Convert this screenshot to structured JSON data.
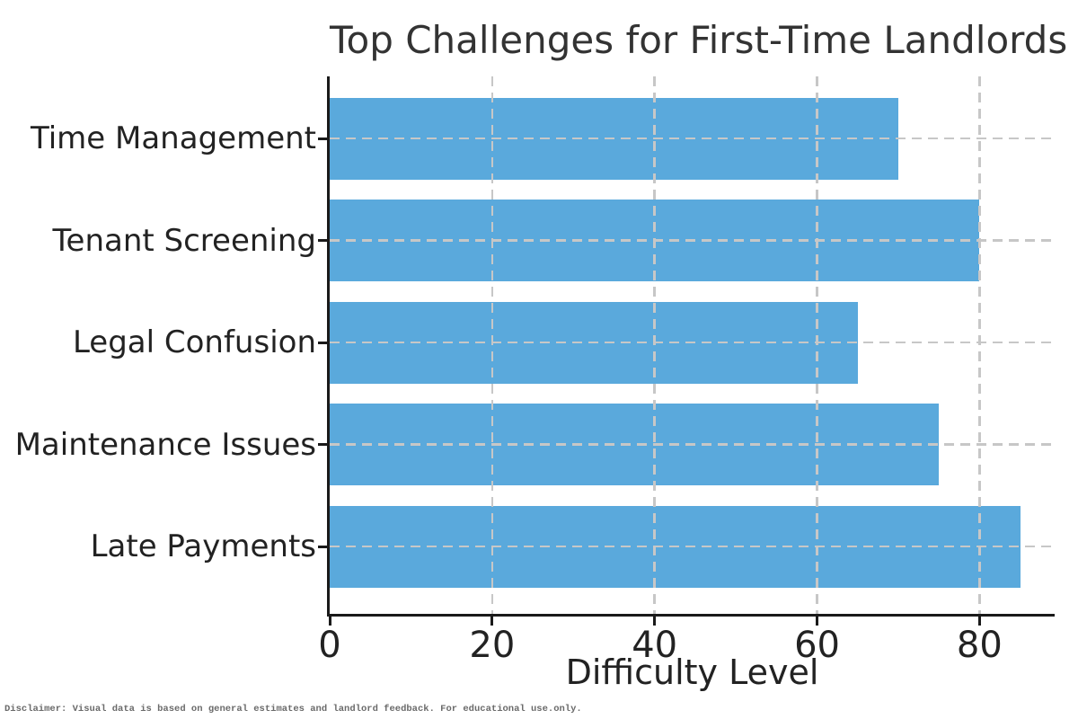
{
  "figure": {
    "disclaimer": "Disclaimer: Visual data is based on general estimates and landlord feedback. For educational use.only."
  },
  "chart_data": {
    "type": "bar",
    "orientation": "horizontal",
    "title": "Top Challenges for First-Time Landlords",
    "categories": [
      "Time Management",
      "Tenant Screening",
      "Legal Confusion",
      "Maintenance Issues",
      "Late Payments"
    ],
    "values": [
      70,
      80,
      65,
      75,
      85
    ],
    "xlabel": "Difficulty Level",
    "ylabel": "",
    "xticks": [
      0,
      20,
      40,
      60,
      80
    ],
    "xlim": [
      0,
      89.25
    ],
    "grid": "dashed gridlines on both axes, drawn above bars",
    "legend": "none",
    "bar_color": "#5AA9DC",
    "grid_color": "#c7c7c7",
    "axis_color": "#1a1a1a",
    "text_color": "#222222",
    "title_color": "#333333"
  }
}
